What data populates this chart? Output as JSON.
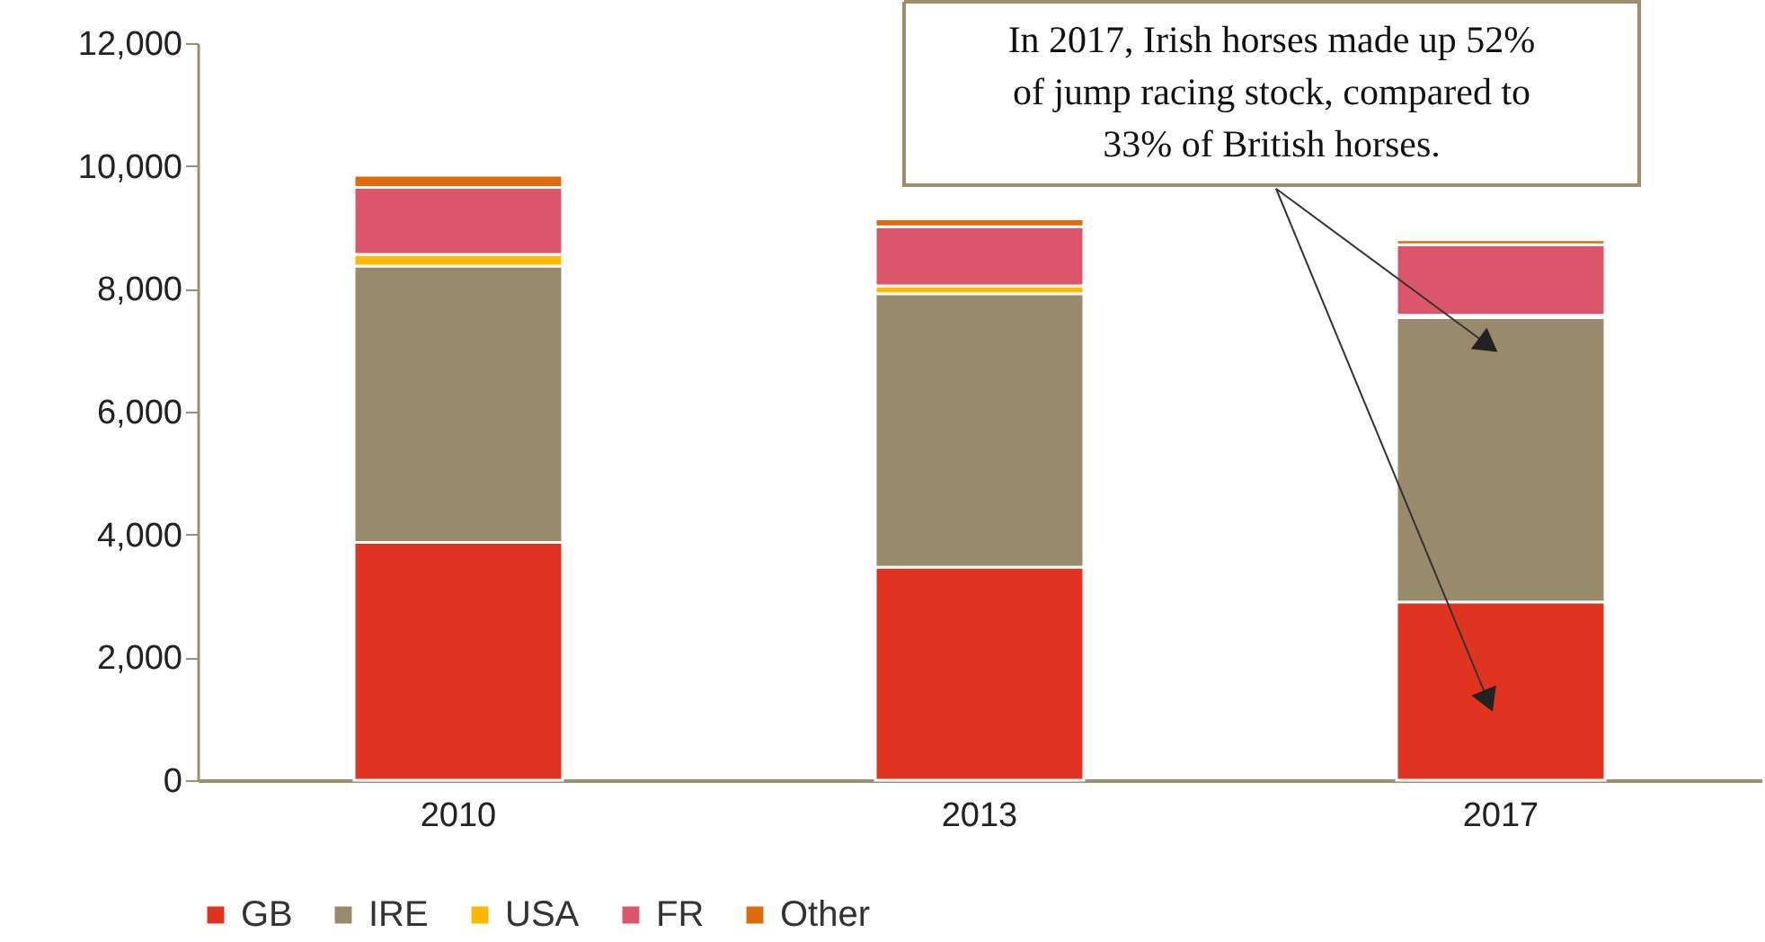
{
  "chart_data": {
    "type": "bar",
    "stacked": true,
    "categories": [
      "2010",
      "2013",
      "2017"
    ],
    "series": [
      {
        "name": "GB",
        "color": "#e03320",
        "values": [
          3870,
          3470,
          2900
        ]
      },
      {
        "name": "IRE",
        "color": "#978b6c",
        "values": [
          4500,
          4450,
          4630
        ]
      },
      {
        "name": "USA",
        "color": "#ffb800",
        "values": [
          190,
          130,
          40
        ]
      },
      {
        "name": "FR",
        "color": "#dc566b",
        "values": [
          1090,
          960,
          1150
        ]
      },
      {
        "name": "Other",
        "color": "#e0690c",
        "values": [
          200,
          130,
          80
        ]
      }
    ],
    "ylim": [
      0,
      12000
    ],
    "yticks": [
      0,
      {
        "value": 2000,
        "label": "2,000"
      },
      {
        "value": 4000,
        "label": "4,000"
      },
      {
        "value": 6000,
        "label": "6,000"
      },
      {
        "value": 8000,
        "label": "8,000"
      },
      {
        "value": 10000,
        "label": "10,000"
      },
      {
        "value": 12000,
        "label": "12,000"
      }
    ],
    "grid": false,
    "legend": "bottom",
    "annotations": [
      "In 2017, Irish horses made up 52% of jump racing stock, compared to 33% of British horses."
    ]
  }
}
